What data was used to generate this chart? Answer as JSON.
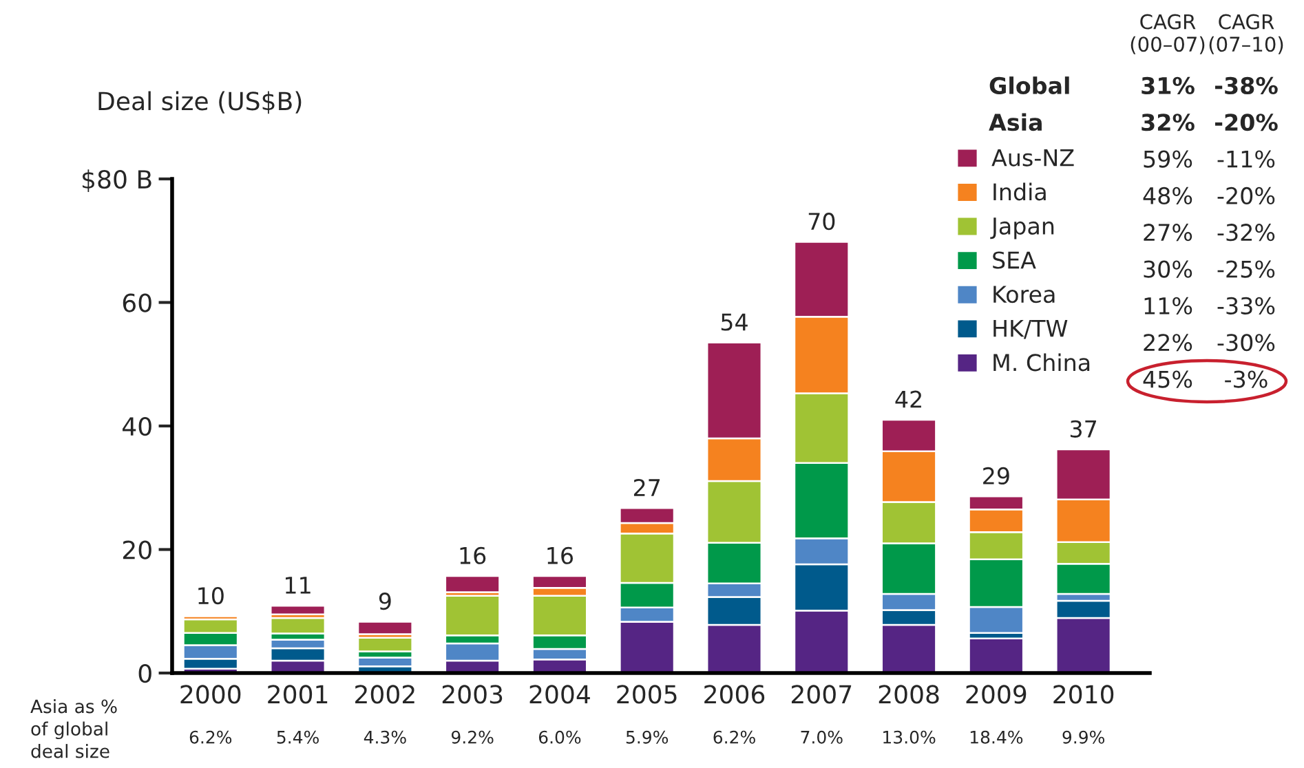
{
  "chart_data": {
    "type": "bar",
    "stacked": true,
    "ylabel": "Deal size (US$B)",
    "categories": [
      "2000",
      "2001",
      "2002",
      "2003",
      "2004",
      "2005",
      "2006",
      "2007",
      "2008",
      "2009",
      "2010"
    ],
    "series": [
      {
        "name": "M. China",
        "color": "#552584",
        "values": [
          0.7,
          2.0,
          null,
          2.0,
          2.2,
          8.3,
          7.8,
          10.1,
          7.8,
          5.6,
          8.9
        ]
      },
      {
        "name": "HK/TW",
        "color": "#005a8c",
        "values": [
          1.6,
          2.0,
          1.1,
          null,
          null,
          null,
          4.5,
          7.5,
          2.4,
          0.9,
          2.8
        ]
      },
      {
        "name": "Korea",
        "color": "#4f86c6",
        "values": [
          2.2,
          1.4,
          1.4,
          2.8,
          1.7,
          2.3,
          2.2,
          4.2,
          2.6,
          4.2,
          1.1
        ]
      },
      {
        "name": "SEA",
        "color": "#00994a",
        "values": [
          2.0,
          1.0,
          1.0,
          1.3,
          2.2,
          4.0,
          6.6,
          12.2,
          8.2,
          7.7,
          4.9
        ]
      },
      {
        "name": "Japan",
        "color": "#a0c334",
        "values": [
          2.2,
          2.5,
          2.2,
          6.4,
          6.4,
          8.0,
          10.0,
          11.3,
          6.7,
          4.4,
          3.5
        ]
      },
      {
        "name": "India",
        "color": "#f5821f",
        "values": [
          0.5,
          0.6,
          0.6,
          0.6,
          1.3,
          1.7,
          6.9,
          12.4,
          8.2,
          3.7,
          6.9
        ]
      },
      {
        "name": "Aus-NZ",
        "color": "#9e1f55",
        "values": [
          null,
          1.4,
          2.0,
          2.6,
          1.9,
          2.4,
          15.5,
          12.1,
          5.1,
          2.1,
          8.1
        ]
      }
    ],
    "totals": [
      "10",
      "11",
      "9",
      "16",
      "16",
      "27",
      "54",
      "70",
      "42",
      "29",
      "37"
    ],
    "ylim": [
      0,
      80
    ],
    "yticks": [
      0,
      20,
      40,
      60,
      {
        "value": 80,
        "label": "$80 B"
      }
    ],
    "grid": false,
    "legend": "top right",
    "annotations": [
      "Asia as %\nof global\ndeal size",
      "6.2%",
      "5.4%",
      "4.3%",
      "9.2%",
      "6.0%",
      "5.9%",
      "6.2%",
      "7.0%",
      "13.0%",
      "18.4%",
      "9.9%",
      "CAGR\n(00–07)",
      "CAGR\n(07–10)",
      "Global",
      "31%",
      "-38%",
      "Asia",
      "32%",
      "-20%",
      "45%",
      "-3%",
      "22%",
      "-30%",
      "11%",
      "-33%",
      "30%",
      "-25%",
      "27%",
      "-32%",
      "48%",
      "-20%",
      "59%",
      "-11%"
    ]
  }
}
